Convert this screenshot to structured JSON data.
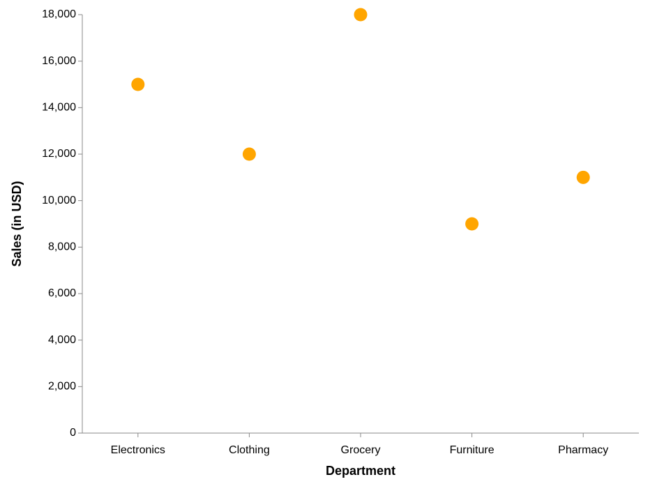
{
  "chart_data": {
    "type": "scatter",
    "title": "",
    "xlabel": "Department",
    "ylabel": "Sales (in USD)",
    "categories": [
      "Electronics",
      "Clothing",
      "Grocery",
      "Furniture",
      "Pharmacy"
    ],
    "values": [
      15000,
      12000,
      18000,
      9000,
      11000
    ],
    "ylim": [
      0,
      18000
    ],
    "yticks": [
      0,
      2000,
      4000,
      6000,
      8000,
      10000,
      12000,
      14000,
      16000,
      18000
    ],
    "ytick_labels": [
      "0",
      "2,000",
      "4,000",
      "6,000",
      "8,000",
      "10,000",
      "12,000",
      "14,000",
      "16,000",
      "18,000"
    ],
    "grid": false,
    "point_color": "#FFA500",
    "axis_color": "#888888"
  }
}
